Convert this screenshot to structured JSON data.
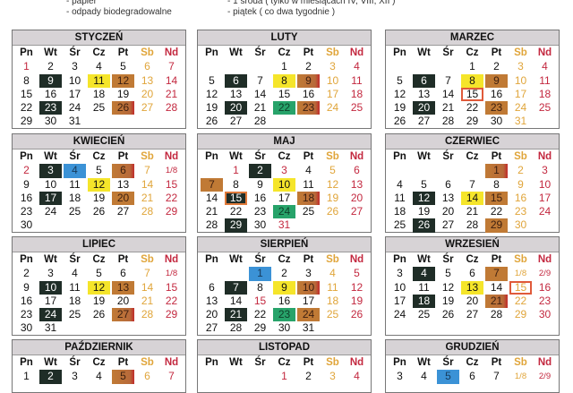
{
  "legend": {
    "left": [
      "- papier",
      "- odpady biodegradowalne"
    ],
    "right": [
      "- 1 środa ( tylko w miesiącach IV, VIII, XII )",
      "- piątek ( co dwa tygodnie )"
    ]
  },
  "day_names": [
    "Pn",
    "Wt",
    "Śr",
    "Cz",
    "Pt",
    "Sb",
    "Nd"
  ],
  "colors": {
    "mixed": "#1f2d27",
    "plastic": "#f5e52a",
    "bio": "#c07a35",
    "paper": "#3b92d6",
    "green": "#27a36a",
    "saturday": "#e0a53a",
    "sunday": "#c3283f"
  },
  "months": [
    {
      "name": "STYCZEŃ",
      "weeks": [
        [
          "1",
          "2",
          "3",
          "4",
          "5",
          "6",
          "7"
        ],
        [
          "8",
          "9",
          "10",
          "11",
          "12",
          "13",
          "14"
        ],
        [
          "15",
          "16",
          "17",
          "18",
          "19",
          "20",
          "21"
        ],
        [
          "22",
          "23",
          "24",
          "25",
          "26",
          "27",
          "28"
        ],
        [
          "29",
          "30",
          "31",
          "",
          "",
          "",
          ""
        ]
      ],
      "marks": {
        "9": "black",
        "11": "yellow",
        "12": "brown",
        "23": "black",
        "26": "brownred"
      },
      "holidays": [
        "1"
      ]
    },
    {
      "name": "LUTY",
      "weeks": [
        [
          "",
          "",
          "",
          "1",
          "2",
          "3",
          "4"
        ],
        [
          "5",
          "6",
          "7",
          "8",
          "9",
          "10",
          "11"
        ],
        [
          "12",
          "13",
          "14",
          "15",
          "16",
          "17",
          "18"
        ],
        [
          "19",
          "20",
          "21",
          "22",
          "23",
          "24",
          "25"
        ],
        [
          "26",
          "27",
          "28",
          "",
          "",
          "",
          ""
        ]
      ],
      "marks": {
        "6": "black",
        "8": "yellow",
        "9": "brownred",
        "20": "black",
        "22": "green",
        "23": "brownred"
      },
      "holidays": []
    },
    {
      "name": "MARZEC",
      "weeks": [
        [
          "",
          "",
          "",
          "1",
          "2",
          "3",
          "4"
        ],
        [
          "5",
          "6",
          "7",
          "8",
          "9",
          "10",
          "11"
        ],
        [
          "12",
          "13",
          "14",
          "15",
          "16",
          "17",
          "18"
        ],
        [
          "19",
          "20",
          "21",
          "22",
          "23",
          "24",
          "25"
        ],
        [
          "26",
          "27",
          "28",
          "29",
          "30",
          "31",
          ""
        ]
      ],
      "marks": {
        "6": "black",
        "8": "yellow",
        "9": "brown",
        "15": "outline",
        "20": "black",
        "23": "brown"
      },
      "holidays": []
    },
    {
      "name": "KWIECIEŃ",
      "weeks": [
        [
          "2",
          "3",
          "4",
          "5",
          "6",
          "7",
          "1/8"
        ],
        [
          "9",
          "10",
          "11",
          "12",
          "13",
          "14",
          "15"
        ],
        [
          "16",
          "17",
          "18",
          "19",
          "20",
          "21",
          "22"
        ],
        [
          "23",
          "24",
          "25",
          "26",
          "27",
          "28",
          "29"
        ],
        [
          "30",
          "",
          "",
          "",
          "",
          "",
          ""
        ]
      ],
      "marks": {
        "3": "black",
        "4": "blue",
        "6": "brownred",
        "12": "yellow",
        "17": "black",
        "20": "brown"
      },
      "holidays": [
        "2"
      ]
    },
    {
      "name": "MAJ",
      "weeks": [
        [
          "",
          "1",
          "2",
          "3",
          "4",
          "5",
          "6"
        ],
        [
          "7",
          "8",
          "9",
          "10",
          "11",
          "12",
          "13"
        ],
        [
          "14",
          "15",
          "16",
          "17",
          "18",
          "19",
          "20"
        ],
        [
          "21",
          "22",
          "23",
          "24",
          "25",
          "26",
          "27"
        ],
        [
          "28",
          "29",
          "30",
          "31",
          "",
          "",
          ""
        ]
      ],
      "marks": {
        "2": "black",
        "7": "brown",
        "10": "yellow",
        "15": "blackoutline",
        "18": "brownred",
        "24": "green",
        "29": "black"
      },
      "holidays": [
        "1",
        "3",
        "31"
      ]
    },
    {
      "name": "CZERWIEC",
      "weeks": [
        [
          "",
          "",
          "",
          "",
          "1",
          "2",
          "3"
        ],
        [
          "4",
          "5",
          "6",
          "7",
          "8",
          "9",
          "10"
        ],
        [
          "11",
          "12",
          "13",
          "14",
          "15",
          "16",
          "17"
        ],
        [
          "18",
          "19",
          "20",
          "21",
          "22",
          "23",
          "24"
        ],
        [
          "25",
          "26",
          "27",
          "28",
          "29",
          "30",
          ""
        ]
      ],
      "marks": {
        "1": "brownred",
        "12": "black",
        "14": "yellow",
        "15": "brown",
        "26": "black",
        "29": "brown"
      },
      "holidays": []
    },
    {
      "name": "LIPIEC",
      "weeks": [
        [
          "2",
          "3",
          "4",
          "5",
          "6",
          "7",
          "1/8"
        ],
        [
          "9",
          "10",
          "11",
          "12",
          "13",
          "14",
          "15"
        ],
        [
          "16",
          "17",
          "18",
          "19",
          "20",
          "21",
          "22"
        ],
        [
          "23",
          "24",
          "25",
          "26",
          "27",
          "28",
          "29"
        ],
        [
          "30",
          "31",
          "",
          "",
          "",
          "",
          ""
        ]
      ],
      "marks": {
        "10": "black",
        "12": "yellow",
        "13": "brown",
        "24": "black",
        "27": "brownred"
      },
      "holidays": []
    },
    {
      "name": "SIERPIEŃ",
      "weeks": [
        [
          "",
          "",
          "1",
          "2",
          "3",
          "4",
          "5"
        ],
        [
          "6",
          "7",
          "8",
          "9",
          "10",
          "11",
          "12"
        ],
        [
          "13",
          "14",
          "15",
          "16",
          "17",
          "18",
          "19"
        ],
        [
          "20",
          "21",
          "22",
          "23",
          "24",
          "25",
          "26"
        ],
        [
          "27",
          "28",
          "29",
          "30",
          "31",
          "",
          ""
        ]
      ],
      "marks": {
        "1": "blue",
        "7": "black",
        "9": "yellow",
        "10": "brownred",
        "21": "black",
        "23": "green",
        "24": "brown"
      },
      "holidays": [
        "15"
      ]
    },
    {
      "name": "WRZESIEŃ",
      "weeks": [
        [
          "3",
          "4",
          "5",
          "6",
          "7",
          "1/8",
          "2/9"
        ],
        [
          "10",
          "11",
          "12",
          "13",
          "14",
          "15",
          "16"
        ],
        [
          "17",
          "18",
          "19",
          "20",
          "21",
          "22",
          "23"
        ],
        [
          "24",
          "25",
          "26",
          "27",
          "28",
          "29",
          "30"
        ]
      ],
      "marks": {
        "4": "black",
        "7": "brown",
        "13": "yellow",
        "15": "outline",
        "18": "black",
        "21": "brownred"
      },
      "holidays": []
    },
    {
      "name": "PAŹDZIERNIK",
      "weeks": [
        [
          "1",
          "2",
          "3",
          "4",
          "5",
          "6",
          "7"
        ]
      ],
      "marks": {
        "2": "black",
        "5": "brownred"
      },
      "holidays": []
    },
    {
      "name": "LISTOPAD",
      "weeks": [
        [
          "",
          "",
          "",
          "1",
          "2",
          "3",
          "4"
        ]
      ],
      "marks": {},
      "holidays": [
        "1"
      ]
    },
    {
      "name": "GRUDZIEŃ",
      "weeks": [
        [
          "3",
          "4",
          "5",
          "6",
          "7",
          "1/8",
          "2/9"
        ]
      ],
      "marks": {
        "5": "blue"
      },
      "holidays": []
    }
  ]
}
